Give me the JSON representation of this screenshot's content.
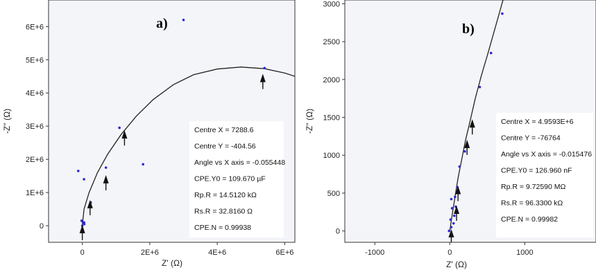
{
  "chart_data": [
    {
      "type": "scatter",
      "panel_label": "a)",
      "xlabel": "Z' (Ω)",
      "ylabel": "-Z'' (Ω)",
      "xlim": [
        -1000000,
        6300000
      ],
      "ylim": [
        -500000,
        6800000
      ],
      "xticks": [
        {
          "v": 0,
          "label": "0"
        },
        {
          "v": 2000000,
          "label": "2E+6"
        },
        {
          "v": 4000000,
          "label": "4E+6"
        },
        {
          "v": 6000000,
          "label": "6E+6"
        }
      ],
      "yticks": [
        {
          "v": 0,
          "label": "0"
        },
        {
          "v": 1000000,
          "label": "1E+6"
        },
        {
          "v": 2000000,
          "label": "2E+6"
        },
        {
          "v": 3000000,
          "label": "3E+6"
        },
        {
          "v": 4000000,
          "label": "4E+6"
        },
        {
          "v": 5000000,
          "label": "5E+6"
        },
        {
          "v": 6000000,
          "label": "6E+6"
        }
      ],
      "points": [
        {
          "x": 0,
          "y": 0
        },
        {
          "x": 20000,
          "y": 100000
        },
        {
          "x": -20000,
          "y": 150000
        },
        {
          "x": 50000,
          "y": 100000
        },
        {
          "x": 60000,
          "y": 50000
        },
        {
          "x": -120000,
          "y": 1650000
        },
        {
          "x": 50000,
          "y": 1400000
        },
        {
          "x": 250000,
          "y": 700000
        },
        {
          "x": 700000,
          "y": 1750000
        },
        {
          "x": 1100000,
          "y": 2950000
        },
        {
          "x": 1800000,
          "y": 1850000
        },
        {
          "x": 3000000,
          "y": 6200000
        },
        {
          "x": 5400000,
          "y": 4750000
        }
      ],
      "fit_curve": [
        [
          0,
          0
        ],
        [
          50000,
          500000
        ],
        [
          200000,
          1000000
        ],
        [
          450000,
          1600000
        ],
        [
          750000,
          2150000
        ],
        [
          1150000,
          2750000
        ],
        [
          1600000,
          3300000
        ],
        [
          2100000,
          3800000
        ],
        [
          2700000,
          4250000
        ],
        [
          3300000,
          4550000
        ],
        [
          4000000,
          4720000
        ],
        [
          4700000,
          4780000
        ],
        [
          5400000,
          4730000
        ],
        [
          6000000,
          4600000
        ],
        [
          6300000,
          4500000
        ]
      ],
      "arrows": [
        {
          "x": 0,
          "y": -100000
        },
        {
          "x": 230000,
          "y": 650000
        },
        {
          "x": 700000,
          "y": 1400000
        },
        {
          "x": 1250000,
          "y": 2750000
        },
        {
          "x": 5350000,
          "y": 4450000
        }
      ],
      "annotations": [
        "Centre X = 7288.6",
        "Centre Y = -404.56",
        "Angle vs X axis = -0.055448",
        "CPE.Y0 = 109.670 µF",
        "Rp.R = 14.5120 kΩ",
        "Rs.R = 32.8160 Ω",
        "CPE.N = 0.99938"
      ]
    },
    {
      "type": "scatter",
      "panel_label": "b)",
      "xlabel": "Z' (Ω)",
      "ylabel": "-Z'' (Ω)",
      "xlim": [
        -1400,
        1950
      ],
      "ylim": [
        -150,
        3050
      ],
      "xticks": [
        {
          "v": -1000,
          "label": "-1000"
        },
        {
          "v": 0,
          "label": "0"
        },
        {
          "v": 1000,
          "label": "1000"
        }
      ],
      "yticks": [
        {
          "v": 0,
          "label": "0"
        },
        {
          "v": 500,
          "label": "500"
        },
        {
          "v": 1000,
          "label": "1000"
        },
        {
          "v": 1500,
          "label": "1500"
        },
        {
          "v": 2000,
          "label": "2000"
        },
        {
          "v": 2500,
          "label": "2500"
        },
        {
          "v": 3000,
          "label": "3000"
        }
      ],
      "points": [
        {
          "x": -10,
          "y": 0
        },
        {
          "x": 20,
          "y": 50
        },
        {
          "x": 50,
          "y": 100
        },
        {
          "x": 10,
          "y": 150
        },
        {
          "x": 60,
          "y": 200
        },
        {
          "x": 30,
          "y": 300
        },
        {
          "x": 80,
          "y": 320
        },
        {
          "x": 20,
          "y": 420
        },
        {
          "x": 70,
          "y": 450
        },
        {
          "x": 100,
          "y": 580
        },
        {
          "x": 130,
          "y": 850
        },
        {
          "x": 200,
          "y": 1050
        },
        {
          "x": 300,
          "y": 1400
        },
        {
          "x": 400,
          "y": 1900
        },
        {
          "x": 550,
          "y": 2350
        },
        {
          "x": 700,
          "y": 2870
        }
      ],
      "fit_curve": [
        [
          0,
          0
        ],
        [
          30,
          200
        ],
        [
          70,
          450
        ],
        [
          110,
          700
        ],
        [
          160,
          950
        ],
        [
          210,
          1200
        ],
        [
          270,
          1450
        ],
        [
          340,
          1750
        ],
        [
          420,
          2050
        ],
        [
          510,
          2350
        ],
        [
          610,
          2700
        ],
        [
          710,
          3050
        ]
      ],
      "arrows": [
        {
          "x": 20,
          "y": -30
        },
        {
          "x": 90,
          "y": 280
        },
        {
          "x": 110,
          "y": 540
        },
        {
          "x": 230,
          "y": 1150
        },
        {
          "x": 300,
          "y": 1420
        }
      ],
      "annotations": [
        "Centre X = 4.9593E+6",
        "Centre Y = -76764",
        "Angle vs X axis = -0.015476",
        "CPE.Y0 = 126.960 nF",
        "Rp.R = 9.72590 MΩ",
        "Rs.R = 96.3300 kΩ",
        "CPE.N = 0.99982"
      ]
    }
  ]
}
